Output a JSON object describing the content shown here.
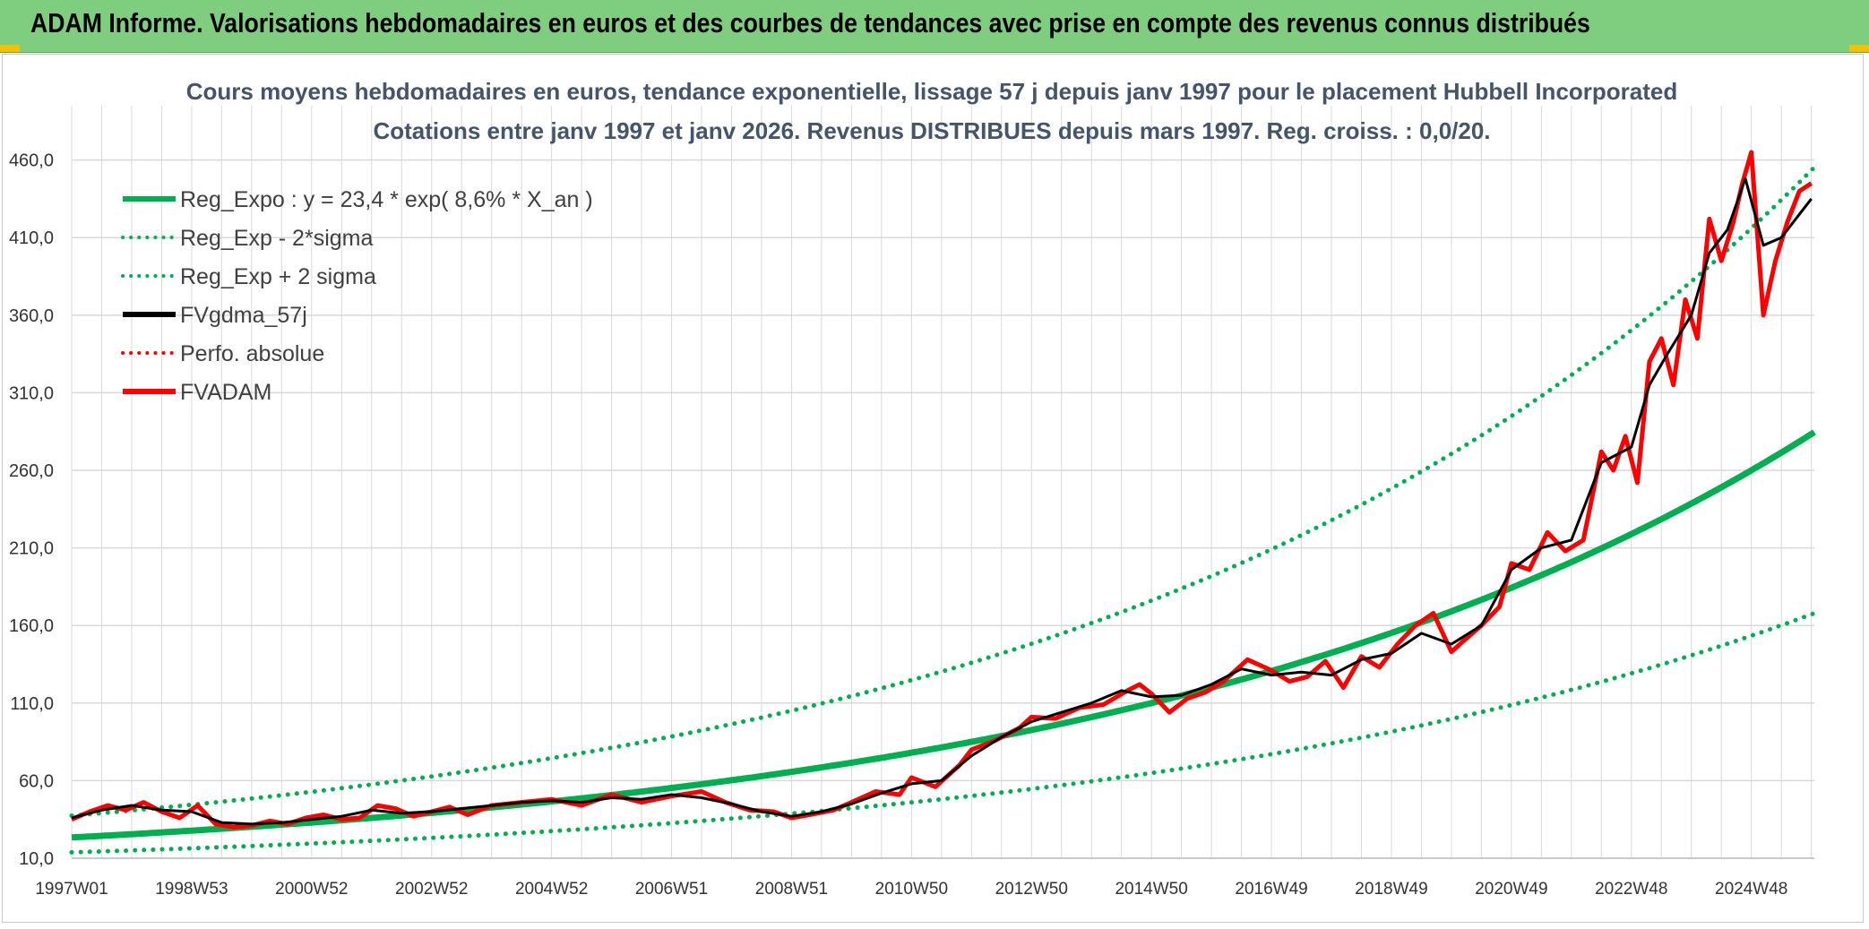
{
  "header": {
    "title": "ADAM Informe. Valorisations hebdomadaires en euros et des courbes de tendances avec prise en compte des revenus connus distribués"
  },
  "colors": {
    "header_bg": "#7fcd7f",
    "reg_green": "#00b050",
    "fv_black": "#000000",
    "adam_red": "#ff0000",
    "grid": "#d9d9d9"
  },
  "chart_data": {
    "type": "line",
    "title": "Cours moyens hebdomadaires en euros, tendance exponentielle, lissage 57 j depuis janv 1997 pour le placement Hubbell Incorporated",
    "subtitle": "Cotations entre janv 1997 et janv 2026. Revenus DISTRIBUES depuis mars 1997. Reg. croiss. : 0,0/20.",
    "xlabel": "",
    "ylabel": "",
    "x_range": [
      1997.0,
      2026.05
    ],
    "ylim": [
      10,
      495
    ],
    "y_ticks": [
      "10,0",
      "60,0",
      "110,0",
      "160,0",
      "210,0",
      "260,0",
      "310,0",
      "360,0",
      "410,0",
      "460,0"
    ],
    "y_tick_values": [
      10,
      60,
      110,
      160,
      210,
      260,
      310,
      360,
      410,
      460
    ],
    "x_tick_labels": [
      "1997W01",
      "1998W53",
      "2000W52",
      "2002W52",
      "2004W52",
      "2006W51",
      "2008W51",
      "2010W50",
      "2012W50",
      "2014W50",
      "2016W49",
      "2018W49",
      "2020W49",
      "2022W48",
      "2024W48"
    ],
    "x_tick_years": [
      1997.0,
      1999.0,
      2001.0,
      2003.0,
      2005.0,
      2007.0,
      2009.0,
      2011.0,
      2013.0,
      2015.0,
      2017.0,
      2019.0,
      2021.0,
      2023.0,
      2025.0
    ],
    "legend": [
      {
        "label": "Reg_Expo : y = 23,4 * exp( 8,6% *  X_an )",
        "color": "#00b050",
        "style": "solid"
      },
      {
        "label": "Reg_Exp - 2*sigma",
        "color": "#00b050",
        "style": "dotted"
      },
      {
        "label": "Reg_Exp + 2 sigma",
        "color": "#00b050",
        "style": "dotted"
      },
      {
        "label": "FVgdma_57j",
        "color": "#000000",
        "style": "solid"
      },
      {
        "label": "Perfo. absolue",
        "color": "#ff0000",
        "style": "dotted"
      },
      {
        "label": "FVADAM",
        "color": "#ff0000",
        "style": "solid"
      }
    ],
    "legend_position": "top-left",
    "regression": {
      "a": 23.4,
      "rate": 0.086,
      "lower_factor": 0.59,
      "upper_factor": 1.6
    },
    "series": [
      {
        "name": "FVADAM",
        "x": [
          1997.0,
          1997.3,
          1997.6,
          1997.9,
          1998.2,
          1998.5,
          1998.8,
          1999.1,
          1999.4,
          1999.7,
          2000.0,
          2000.3,
          2000.6,
          2000.9,
          2001.2,
          2001.5,
          2001.8,
          2002.1,
          2002.4,
          2002.7,
          2003.0,
          2003.3,
          2003.6,
          2004.0,
          2004.5,
          2005.0,
          2005.5,
          2006.0,
          2006.5,
          2007.0,
          2007.5,
          2007.9,
          2008.3,
          2008.7,
          2009.0,
          2009.3,
          2009.7,
          2010.0,
          2010.4,
          2010.8,
          2011.0,
          2011.4,
          2011.8,
          2012.0,
          2012.4,
          2012.8,
          2013.0,
          2013.4,
          2013.8,
          2014.2,
          2014.6,
          2014.8,
          2015.0,
          2015.3,
          2015.6,
          2015.9,
          2016.2,
          2016.6,
          2017.0,
          2017.3,
          2017.6,
          2017.9,
          2018.2,
          2018.5,
          2018.8,
          2019.1,
          2019.4,
          2019.7,
          2020.0,
          2020.2,
          2020.5,
          2020.8,
          2021.0,
          2021.3,
          2021.6,
          2021.9,
          2022.2,
          2022.5,
          2022.7,
          2022.9,
          2023.1,
          2023.3,
          2023.5,
          2023.7,
          2023.9,
          2024.1,
          2024.3,
          2024.5,
          2024.7,
          2024.85,
          2025.0,
          2025.2,
          2025.4,
          2025.6,
          2025.8,
          2026.0
        ],
        "values": [
          35,
          40,
          44,
          41,
          46,
          40,
          36,
          44,
          32,
          30,
          31,
          34,
          32,
          36,
          38,
          35,
          36,
          44,
          42,
          37,
          40,
          43,
          38,
          44,
          46,
          48,
          44,
          51,
          46,
          50,
          53,
          46,
          41,
          40,
          36,
          38,
          41,
          46,
          53,
          51,
          62,
          56,
          70,
          80,
          86,
          94,
          101,
          100,
          107,
          109,
          118,
          122,
          116,
          104,
          113,
          117,
          124,
          138,
          131,
          124,
          127,
          137,
          120,
          140,
          133,
          148,
          160,
          168,
          143,
          150,
          160,
          172,
          200,
          196,
          220,
          208,
          215,
          272,
          260,
          282,
          252,
          330,
          345,
          315,
          370,
          345,
          422,
          395,
          420,
          445,
          465,
          360,
          395,
          420,
          440,
          445
        ]
      },
      {
        "name": "FVgdma_57j",
        "x": [
          1997.0,
          1997.5,
          1998.0,
          1998.5,
          1999.0,
          1999.5,
          2000.0,
          2000.5,
          2001.0,
          2001.5,
          2002.0,
          2002.5,
          2003.0,
          2003.5,
          2004.0,
          2004.5,
          2005.0,
          2005.5,
          2006.0,
          2006.5,
          2007.0,
          2007.5,
          2008.0,
          2008.5,
          2009.0,
          2009.5,
          2010.0,
          2010.5,
          2011.0,
          2011.5,
          2012.0,
          2012.5,
          2013.0,
          2013.5,
          2014.0,
          2014.5,
          2015.0,
          2015.5,
          2016.0,
          2016.5,
          2017.0,
          2017.5,
          2018.0,
          2018.5,
          2019.0,
          2019.5,
          2020.0,
          2020.5,
          2021.0,
          2021.5,
          2022.0,
          2022.5,
          2023.0,
          2023.3,
          2023.6,
          2024.0,
          2024.3,
          2024.6,
          2024.9,
          2025.2,
          2025.5,
          2025.8,
          2026.0
        ],
        "values": [
          36,
          41,
          44,
          41,
          40,
          33,
          32,
          33,
          35,
          37,
          41,
          39,
          40,
          42,
          44,
          46,
          47,
          46,
          49,
          48,
          51,
          49,
          45,
          40,
          37,
          40,
          45,
          52,
          58,
          60,
          76,
          88,
          98,
          104,
          110,
          118,
          114,
          115,
          122,
          132,
          128,
          130,
          128,
          138,
          142,
          155,
          148,
          160,
          196,
          210,
          215,
          265,
          275,
          315,
          335,
          360,
          400,
          415,
          448,
          405,
          410,
          425,
          435
        ]
      }
    ]
  }
}
